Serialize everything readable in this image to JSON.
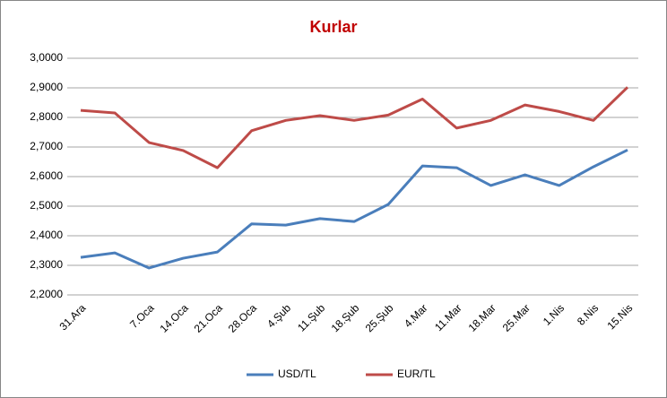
{
  "chart_data": {
    "type": "line",
    "title": "Kurlar",
    "categories": [
      "31.Ara",
      null,
      "7.Oca",
      "14.Oca",
      "21.Oca",
      "28.Oca",
      "4.Şub",
      "11.Şub",
      "18.Şub",
      "25.Şub",
      "4.Mar",
      "11.Mar",
      "18.Mar",
      "25.Mar",
      "1.Nis",
      "8.Nis",
      "15.Nis"
    ],
    "series": [
      {
        "name": "USD/TL",
        "color": "#4a7ebb",
        "values": [
          2.327,
          2.342,
          2.291,
          2.324,
          2.345,
          2.44,
          2.436,
          2.458,
          2.448,
          2.506,
          2.636,
          2.63,
          2.57,
          2.606,
          2.57,
          2.633,
          2.69
        ]
      },
      {
        "name": "EUR/TL",
        "color": "#be4b48",
        "values": [
          2.824,
          2.815,
          2.715,
          2.688,
          2.63,
          2.755,
          2.79,
          2.806,
          2.79,
          2.808,
          2.862,
          2.764,
          2.79,
          2.842,
          2.82,
          2.79,
          2.902
        ]
      }
    ],
    "ylim": [
      2.2,
      3.0
    ],
    "yticks": [
      {
        "value": 2.2,
        "label": "2,2000"
      },
      {
        "value": 2.3,
        "label": "2,3000"
      },
      {
        "value": 2.4,
        "label": "2,4000"
      },
      {
        "value": 2.5,
        "label": "2,5000"
      },
      {
        "value": 2.6,
        "label": "2,6000"
      },
      {
        "value": 2.7,
        "label": "2,7000"
      },
      {
        "value": 2.8,
        "label": "2,8000"
      },
      {
        "value": 2.9,
        "label": "2,9000"
      },
      {
        "value": 3.0,
        "label": "3,0000"
      }
    ],
    "grid": true,
    "legend": "bottom"
  }
}
